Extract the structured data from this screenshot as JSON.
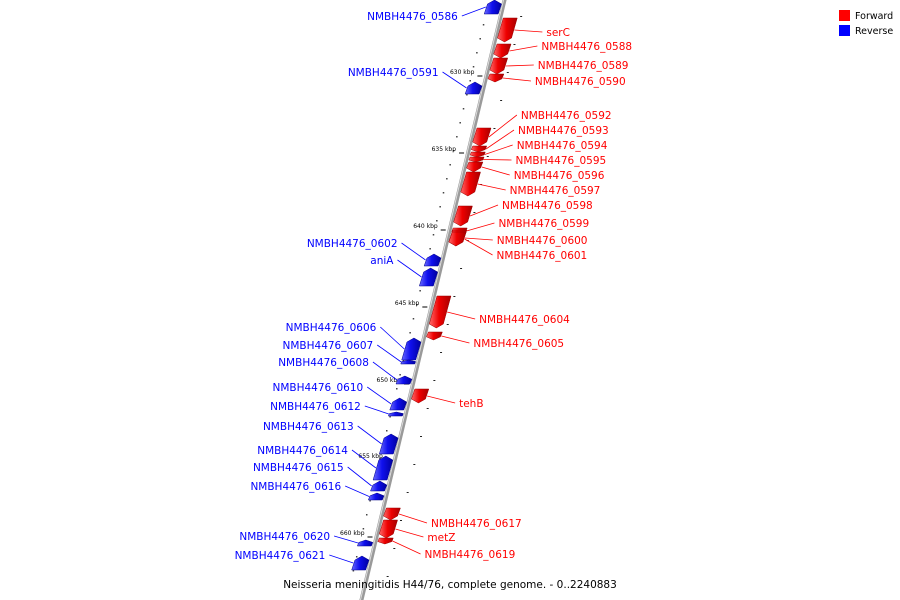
{
  "legend": {
    "forward": {
      "label": "Forward",
      "color": "#ff0000"
    },
    "reverse": {
      "label": "Reverse",
      "color": "#0000ff"
    }
  },
  "caption": "Neisseria meningitidis H44/76, complete genome. - 0..2240883",
  "ticks": [
    "630 kbp",
    "635 kbp",
    "640 kbp",
    "645 kbp",
    "650 kbp",
    "655 kbp",
    "660 kbp"
  ],
  "genes": {
    "forward": [
      "serC",
      "NMBH4476_0588",
      "NMBH4476_0589",
      "NMBH4476_0590",
      "NMBH4476_0592",
      "NMBH4476_0593",
      "NMBH4476_0594",
      "NMBH4476_0595",
      "NMBH4476_0596",
      "NMBH4476_0597",
      "NMBH4476_0598",
      "NMBH4476_0599",
      "NMBH4476_0600",
      "NMBH4476_0601",
      "NMBH4476_0604",
      "NMBH4476_0605",
      "tehB",
      "NMBH4476_0617",
      "metZ",
      "NMBH4476_0619"
    ],
    "reverse": [
      "NMBH4476_0586",
      "NMBH4476_0591",
      "NMBH4476_0602",
      "aniA",
      "NMBH4476_0606",
      "NMBH4476_0607",
      "NMBH4476_0608",
      "NMBH4476_0610",
      "NMBH4476_0612",
      "NMBH4476_0613",
      "NMBH4476_0614",
      "NMBH4476_0615",
      "NMBH4476_0616",
      "NMBH4476_0620",
      "NMBH4476_0621"
    ]
  }
}
